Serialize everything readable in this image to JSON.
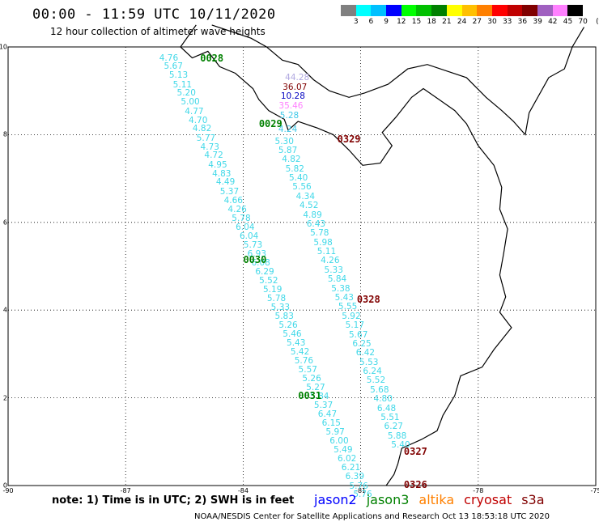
{
  "title": "00:00 - 11:59 UTC 10/11/2020",
  "subtitle": "12 hour collection of altimeter wave heights",
  "colorbar": {
    "labels": [
      "3",
      "6",
      "9",
      "12",
      "15",
      "18",
      "21",
      "24",
      "27",
      "30",
      "33",
      "36",
      "39",
      "42",
      "45",
      "70",
      "(ft)"
    ],
    "colors": [
      "#808080",
      "#00ffff",
      "#00c0ff",
      "#0000ff",
      "#00ff00",
      "#00c000",
      "#008000",
      "#ffff00",
      "#ffc000",
      "#ff8000",
      "#ff0000",
      "#c00000",
      "#800000",
      "#a060c0",
      "#ff80ff",
      "#000000"
    ]
  },
  "axes": {
    "lat_ticks": [
      {
        "value": 0,
        "label": "0"
      },
      {
        "value": 2,
        "label": "2"
      },
      {
        "value": 4,
        "label": "4"
      },
      {
        "value": 6,
        "label": "6"
      },
      {
        "value": 8,
        "label": "8"
      },
      {
        "value": 10,
        "label": "10"
      }
    ],
    "lon_ticks": [
      {
        "value": -90,
        "label": "-90"
      },
      {
        "value": -87,
        "label": "-87"
      },
      {
        "value": -84,
        "label": "-84"
      },
      {
        "value": -81,
        "label": "-81"
      },
      {
        "value": -78,
        "label": "-78"
      },
      {
        "value": -75,
        "label": "-75"
      }
    ],
    "lon_range": [
      -90,
      -75
    ],
    "lat_range": [
      0,
      10
    ]
  },
  "chart_data": {
    "type": "scatter",
    "x_unit": "degrees longitude",
    "y_unit": "degrees latitude",
    "pass_labels": [
      {
        "label": "0028",
        "lon": -84.8,
        "lat": 9.75,
        "satellite": "jason3"
      },
      {
        "label": "0029",
        "lon": -83.3,
        "lat": 8.25,
        "satellite": "jason3"
      },
      {
        "label": "0030",
        "lon": -83.7,
        "lat": 5.15,
        "satellite": "jason3"
      },
      {
        "label": "0031",
        "lon": -82.3,
        "lat": 2.05,
        "satellite": "jason3"
      },
      {
        "label": "0329",
        "lon": -81.3,
        "lat": 7.9,
        "satellite": "cryosat"
      },
      {
        "label": "0328",
        "lon": -80.8,
        "lat": 4.25,
        "satellite": "cryosat"
      },
      {
        "label": "0327",
        "lon": -79.6,
        "lat": 0.78,
        "satellite": "cryosat"
      },
      {
        "label": "0326",
        "lon": -79.6,
        "lat": 0.02,
        "satellite": "cryosat"
      }
    ],
    "observations": [
      {
        "track": "west",
        "lon": -85.9,
        "lat": 9.75,
        "swh": "4.76"
      },
      {
        "track": "west",
        "lon": -85.78,
        "lat": 9.55,
        "swh": "5.67"
      },
      {
        "track": "west",
        "lon": -85.65,
        "lat": 9.35,
        "swh": "5.13"
      },
      {
        "track": "west",
        "lon": -85.55,
        "lat": 9.14,
        "swh": "5.11"
      },
      {
        "track": "west",
        "lon": -85.45,
        "lat": 8.94,
        "swh": "5.20"
      },
      {
        "track": "west",
        "lon": -85.35,
        "lat": 8.74,
        "swh": "5.00"
      },
      {
        "track": "west",
        "lon": -85.25,
        "lat": 8.53,
        "swh": "4.77"
      },
      {
        "track": "west",
        "lon": -85.15,
        "lat": 8.33,
        "swh": "4.70"
      },
      {
        "track": "west",
        "lon": -85.05,
        "lat": 8.13,
        "swh": "4.82"
      },
      {
        "track": "west",
        "lon": -84.95,
        "lat": 7.92,
        "swh": "5.77"
      },
      {
        "track": "west",
        "lon": -84.85,
        "lat": 7.72,
        "swh": "4.73"
      },
      {
        "track": "west",
        "lon": -84.75,
        "lat": 7.52,
        "swh": "4.72"
      },
      {
        "track": "west",
        "lon": -84.65,
        "lat": 7.31,
        "swh": "4.95"
      },
      {
        "track": "west",
        "lon": -84.55,
        "lat": 7.11,
        "swh": "4.83"
      },
      {
        "track": "west",
        "lon": -84.45,
        "lat": 6.91,
        "swh": "4.49"
      },
      {
        "track": "west",
        "lon": -84.35,
        "lat": 6.7,
        "swh": "5.37"
      },
      {
        "track": "west",
        "lon": -84.25,
        "lat": 6.5,
        "swh": "4.66"
      },
      {
        "track": "west",
        "lon": -84.15,
        "lat": 6.3,
        "swh": "4.26"
      },
      {
        "track": "west",
        "lon": -84.05,
        "lat": 6.09,
        "swh": "5.78"
      },
      {
        "track": "west",
        "lon": -83.95,
        "lat": 5.89,
        "swh": "6.04"
      },
      {
        "track": "west",
        "lon": -83.85,
        "lat": 5.69,
        "swh": "6.04"
      },
      {
        "track": "west",
        "lon": -83.75,
        "lat": 5.48,
        "swh": "5.73"
      },
      {
        "track": "west",
        "lon": -83.65,
        "lat": 5.28,
        "swh": "6.93"
      },
      {
        "track": "west",
        "lon": -83.55,
        "lat": 5.08,
        "swh": "6.08"
      },
      {
        "track": "west",
        "lon": -83.45,
        "lat": 4.87,
        "swh": "6.29"
      },
      {
        "track": "west",
        "lon": -83.35,
        "lat": 4.67,
        "swh": "5.52"
      },
      {
        "track": "west",
        "lon": -83.25,
        "lat": 4.47,
        "swh": "5.19"
      },
      {
        "track": "west",
        "lon": -83.15,
        "lat": 4.26,
        "swh": "5.78"
      },
      {
        "track": "west",
        "lon": -83.05,
        "lat": 4.06,
        "swh": "5.33"
      },
      {
        "track": "west",
        "lon": -82.95,
        "lat": 3.86,
        "swh": "5.83"
      },
      {
        "track": "west",
        "lon": -82.85,
        "lat": 3.65,
        "swh": "5.26"
      },
      {
        "track": "west",
        "lon": -82.75,
        "lat": 3.45,
        "swh": "5.46"
      },
      {
        "track": "west",
        "lon": -82.65,
        "lat": 3.25,
        "swh": "5.43"
      },
      {
        "track": "west",
        "lon": -82.55,
        "lat": 3.04,
        "swh": "5.42"
      },
      {
        "track": "west",
        "lon": -82.45,
        "lat": 2.84,
        "swh": "5.76"
      },
      {
        "track": "west",
        "lon": -82.35,
        "lat": 2.64,
        "swh": "5.57"
      },
      {
        "track": "west",
        "lon": -82.25,
        "lat": 2.43,
        "swh": "5.26"
      },
      {
        "track": "west",
        "lon": -82.15,
        "lat": 2.23,
        "swh": "5.27"
      },
      {
        "track": "west",
        "lon": -82.05,
        "lat": 2.03,
        "swh": "5.84"
      },
      {
        "track": "west",
        "lon": -81.95,
        "lat": 1.82,
        "swh": "5.37"
      },
      {
        "track": "west",
        "lon": -81.85,
        "lat": 1.62,
        "swh": "6.47"
      },
      {
        "track": "west",
        "lon": -81.75,
        "lat": 1.42,
        "swh": "6.15"
      },
      {
        "track": "west",
        "lon": -81.65,
        "lat": 1.21,
        "swh": "5.97"
      },
      {
        "track": "west",
        "lon": -81.55,
        "lat": 1.01,
        "swh": "6.00"
      },
      {
        "track": "west",
        "lon": -81.45,
        "lat": 0.81,
        "swh": "5.49"
      },
      {
        "track": "west",
        "lon": -81.35,
        "lat": 0.6,
        "swh": "6.02"
      },
      {
        "track": "west",
        "lon": -81.25,
        "lat": 0.4,
        "swh": "6.21"
      },
      {
        "track": "west",
        "lon": -81.15,
        "lat": 0.2,
        "swh": "6.39"
      },
      {
        "track": "west",
        "lon": -81.05,
        "lat": -0.01,
        "swh": "5.76"
      },
      {
        "track": "west",
        "lon": -80.95,
        "lat": -0.21,
        "swh": "5.76"
      },
      {
        "track": "north",
        "lon": -82.62,
        "lat": 9.3,
        "swh": "44.28",
        "color": "#b0a8e0"
      },
      {
        "track": "north",
        "lon": -82.68,
        "lat": 9.08,
        "swh": "36.07",
        "color": "#800000"
      },
      {
        "track": "north",
        "lon": -82.73,
        "lat": 8.87,
        "swh": "10.28",
        "color": "#0000c0"
      },
      {
        "track": "north",
        "lon": -82.78,
        "lat": 8.65,
        "swh": "35.46",
        "color": "#ff80ff"
      },
      {
        "track": "north",
        "lon": -82.82,
        "lat": 8.43,
        "swh": "5.28",
        "color": "#40c8e8"
      },
      {
        "track": "north",
        "lon": -82.86,
        "lat": 8.12,
        "swh": "4.24",
        "color": "#40c8e8"
      },
      {
        "track": "east",
        "lon": -82.95,
        "lat": 7.85,
        "swh": "5.30"
      },
      {
        "track": "east",
        "lon": -82.86,
        "lat": 7.64,
        "swh": "5.87"
      },
      {
        "track": "east",
        "lon": -82.77,
        "lat": 7.43,
        "swh": "4.82"
      },
      {
        "track": "east",
        "lon": -82.68,
        "lat": 7.22,
        "swh": "5.82"
      },
      {
        "track": "east",
        "lon": -82.59,
        "lat": 7.01,
        "swh": "5.40"
      },
      {
        "track": "east",
        "lon": -82.5,
        "lat": 6.8,
        "swh": "5.56"
      },
      {
        "track": "east",
        "lon": -82.41,
        "lat": 6.59,
        "swh": "4.34"
      },
      {
        "track": "east",
        "lon": -82.32,
        "lat": 6.38,
        "swh": "4.52"
      },
      {
        "track": "east",
        "lon": -82.23,
        "lat": 6.17,
        "swh": "4.89"
      },
      {
        "track": "east",
        "lon": -82.14,
        "lat": 5.96,
        "swh": "6.43"
      },
      {
        "track": "east",
        "lon": -82.05,
        "lat": 5.75,
        "swh": "5.78"
      },
      {
        "track": "east",
        "lon": -81.96,
        "lat": 5.54,
        "swh": "5.98"
      },
      {
        "track": "east",
        "lon": -81.87,
        "lat": 5.33,
        "swh": "5.11"
      },
      {
        "track": "east",
        "lon": -81.78,
        "lat": 5.12,
        "swh": "4.26"
      },
      {
        "track": "east",
        "lon": -81.69,
        "lat": 4.91,
        "swh": "5.33"
      },
      {
        "track": "east",
        "lon": -81.6,
        "lat": 4.7,
        "swh": "5.84"
      },
      {
        "track": "east",
        "lon": -81.51,
        "lat": 4.49,
        "swh": "5.38"
      },
      {
        "track": "east",
        "lon": -81.42,
        "lat": 4.28,
        "swh": "5.43"
      },
      {
        "track": "east",
        "lon": -81.33,
        "lat": 4.07,
        "swh": "5.55"
      },
      {
        "track": "east",
        "lon": -81.24,
        "lat": 3.86,
        "swh": "5.92"
      },
      {
        "track": "east",
        "lon": -81.15,
        "lat": 3.65,
        "swh": "5.17"
      },
      {
        "track": "east",
        "lon": -81.06,
        "lat": 3.44,
        "swh": "5.67"
      },
      {
        "track": "east",
        "lon": -80.97,
        "lat": 3.23,
        "swh": "6.25"
      },
      {
        "track": "east",
        "lon": -80.88,
        "lat": 3.02,
        "swh": "6.42"
      },
      {
        "track": "east",
        "lon": -80.79,
        "lat": 2.81,
        "swh": "5.53"
      },
      {
        "track": "east",
        "lon": -80.7,
        "lat": 2.6,
        "swh": "6.24"
      },
      {
        "track": "east",
        "lon": -80.61,
        "lat": 2.39,
        "swh": "5.52"
      },
      {
        "track": "east",
        "lon": -80.52,
        "lat": 2.18,
        "swh": "5.68"
      },
      {
        "track": "east",
        "lon": -80.43,
        "lat": 1.97,
        "swh": "4.80"
      },
      {
        "track": "east",
        "lon": -80.34,
        "lat": 1.76,
        "swh": "6.48"
      },
      {
        "track": "east",
        "lon": -80.25,
        "lat": 1.55,
        "swh": "5.51"
      },
      {
        "track": "east",
        "lon": -80.16,
        "lat": 1.34,
        "swh": "6.27"
      },
      {
        "track": "east",
        "lon": -80.07,
        "lat": 1.13,
        "swh": "5.88"
      },
      {
        "track": "east",
        "lon": -79.98,
        "lat": 0.92,
        "swh": "5.40"
      }
    ],
    "grid": true
  },
  "note": "note: 1) Time is in UTC; 2) SWH is in feet",
  "legend": [
    {
      "name": "jason2",
      "color": "#0000ff"
    },
    {
      "name": "jason3",
      "color": "#008000"
    },
    {
      "name": "altika",
      "color": "#ff8000"
    },
    {
      "name": "cryosat",
      "color": "#c00000"
    },
    {
      "name": "s3a",
      "color": "#800000"
    }
  ],
  "credit": "NOAA/NESDIS Center for Satellite Applications and Research    Oct 13 18:53:18 UTC 2020"
}
